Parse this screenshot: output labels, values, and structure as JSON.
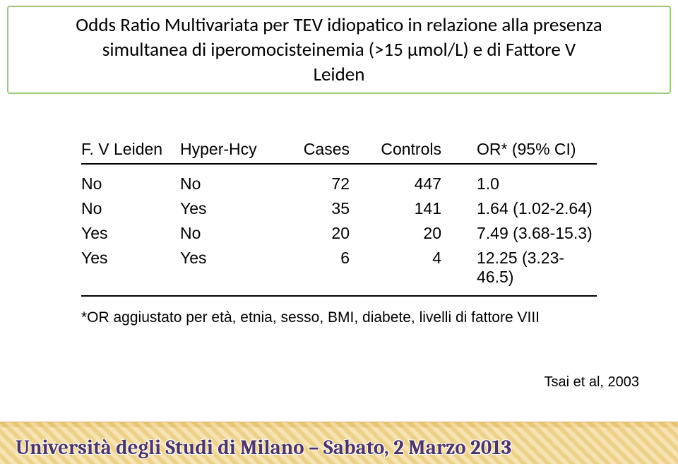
{
  "title": {
    "line1": "Odds Ratio Multivariata per TEV idiopatico in relazione alla presenza",
    "line2": "simultanea di iperomocisteinemia (>15 µmol/L) e di Fattore V",
    "line3": "Leiden"
  },
  "table": {
    "headers": {
      "c1": "F. V Leiden",
      "c2": "Hyper-Hcy",
      "c3": "Cases",
      "c4": "Controls",
      "c5": "OR* (95% CI)"
    },
    "rows": [
      {
        "c1": "No",
        "c2": "No",
        "c3": "72",
        "c4": "447",
        "c5": "1.0"
      },
      {
        "c1": "No",
        "c2": "Yes",
        "c3": "35",
        "c4": "141",
        "c5": "1.64 (1.02-2.64)"
      },
      {
        "c1": "Yes",
        "c2": "No",
        "c3": "20",
        "c4": "20",
        "c5": "7.49 (3.68-15.3)"
      },
      {
        "c1": "Yes",
        "c2": "Yes",
        "c3": "6",
        "c4": "4",
        "c5": "12.25 (3.23-46.5)"
      }
    ]
  },
  "footnote": "*OR aggiustato per età, etnia, sesso, BMI, diabete, livelli di fattore VIII",
  "citation": "Tsai et al, 2003",
  "footer": "Università degli Studi di Milano – Sabato, 2 Marzo 2013"
}
